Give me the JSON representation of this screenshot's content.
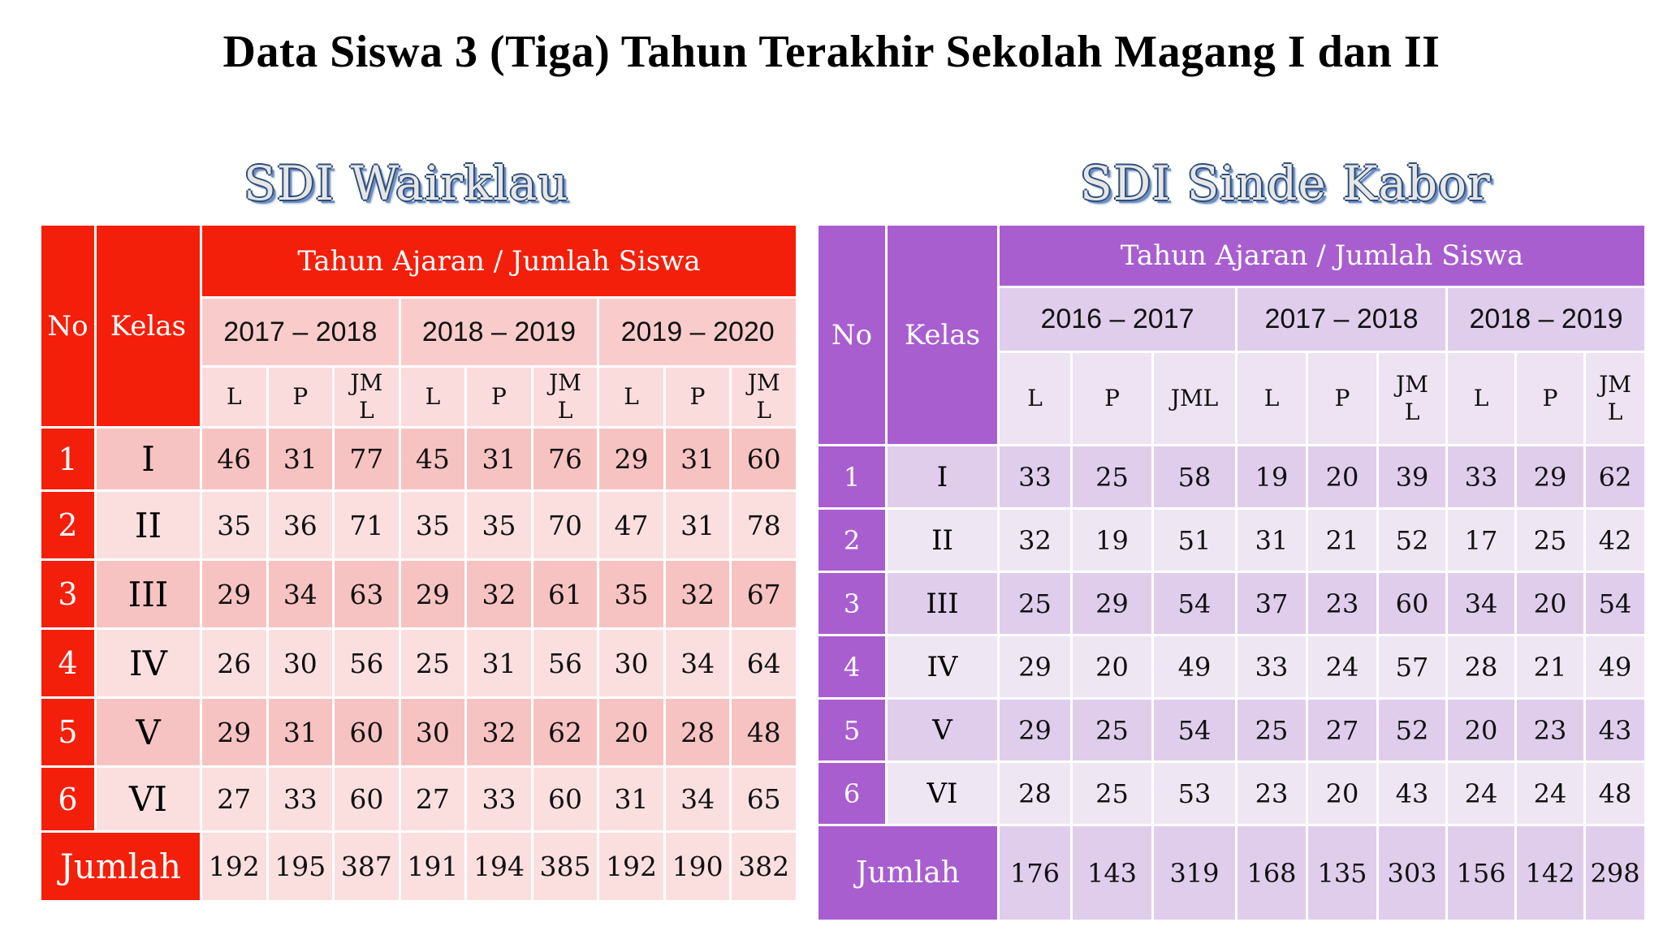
{
  "title": "Data Siswa 3 (Tiga) Tahun Terakhir Sekolah Magang I dan II",
  "colors": {
    "red_header": "#f41f0a",
    "purple_header": "#a95ed0"
  },
  "headers": {
    "no": "No",
    "kelas": "Kelas",
    "tahun_ajaran": "Tahun Ajaran / Jumlah Siswa",
    "jumlah": "Jumlah"
  },
  "schools": [
    {
      "name": "SDI Wairklau",
      "years": [
        "2017 – 2018",
        "2018 – 2019",
        "2019 – 2020"
      ],
      "subcols": [
        "L",
        "P",
        "JM L"
      ],
      "rows": [
        {
          "no": "1",
          "kelas": "I",
          "values": [
            "46",
            "31",
            "77",
            "45",
            "31",
            "76",
            "29",
            "31",
            "60"
          ]
        },
        {
          "no": "2",
          "kelas": "II",
          "values": [
            "35",
            "36",
            "71",
            "35",
            "35",
            "70",
            "47",
            "31",
            "78"
          ]
        },
        {
          "no": "3",
          "kelas": "III",
          "values": [
            "29",
            "34",
            "63",
            "29",
            "32",
            "61",
            "35",
            "32",
            "67"
          ]
        },
        {
          "no": "4",
          "kelas": "IV",
          "values": [
            "26",
            "30",
            "56",
            "25",
            "31",
            "56",
            "30",
            "34",
            "64"
          ]
        },
        {
          "no": "5",
          "kelas": "V",
          "values": [
            "29",
            "31",
            "60",
            "30",
            "32",
            "62",
            "20",
            "28",
            "48"
          ]
        },
        {
          "no": "6",
          "kelas": "VI",
          "values": [
            "27",
            "33",
            "60",
            "27",
            "33",
            "60",
            "31",
            "34",
            "65"
          ]
        }
      ],
      "totals": [
        "192",
        "195",
        "387",
        "191",
        "194",
        "385",
        "192",
        "190",
        "382"
      ]
    },
    {
      "name": "SDI Sinde Kabor",
      "years": [
        "2016 – 2017",
        "2017 – 2018",
        "2018 – 2019"
      ],
      "subcols": [
        "L",
        "P",
        "JML",
        "L",
        "P",
        "JM L",
        "L",
        "P",
        "JM L"
      ],
      "rows": [
        {
          "no": "1",
          "kelas": "I",
          "values": [
            "33",
            "25",
            "58",
            "19",
            "20",
            "39",
            "33",
            "29",
            "62"
          ]
        },
        {
          "no": "2",
          "kelas": "II",
          "values": [
            "32",
            "19",
            "51",
            "31",
            "21",
            "52",
            "17",
            "25",
            "42"
          ]
        },
        {
          "no": "3",
          "kelas": "III",
          "values": [
            "25",
            "29",
            "54",
            "37",
            "23",
            "60",
            "34",
            "20",
            "54"
          ]
        },
        {
          "no": "4",
          "kelas": "IV",
          "values": [
            "29",
            "20",
            "49",
            "33",
            "24",
            "57",
            "28",
            "21",
            "49"
          ]
        },
        {
          "no": "5",
          "kelas": "V",
          "values": [
            "29",
            "25",
            "54",
            "25",
            "27",
            "52",
            "20",
            "23",
            "43"
          ]
        },
        {
          "no": "6",
          "kelas": "VI",
          "values": [
            "28",
            "25",
            "53",
            "23",
            "20",
            "43",
            "24",
            "24",
            "48"
          ]
        }
      ],
      "totals": [
        "176",
        "143",
        "319",
        "168",
        "135",
        "303",
        "156",
        "142",
        "298"
      ]
    }
  ]
}
